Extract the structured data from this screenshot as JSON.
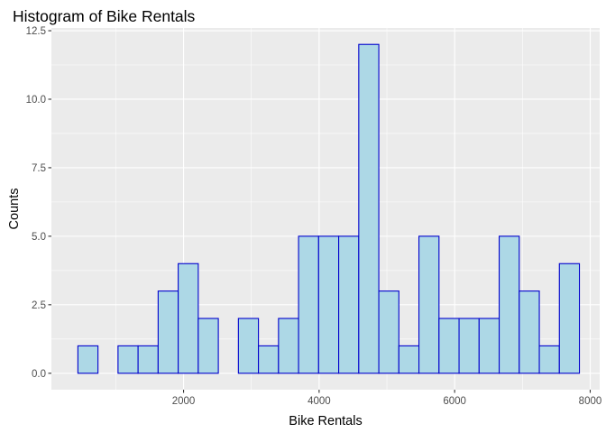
{
  "chart_data": {
    "type": "bar",
    "title": "Histogram of Bike Rentals",
    "xlabel": "Bike Rentals",
    "ylabel": "Counts",
    "xlim": [
      50,
      8140
    ],
    "ylim": [
      -0.6,
      12.6
    ],
    "x_ticks": [
      2000,
      4000,
      6000,
      8000
    ],
    "x_tick_labels": [
      "2000",
      "4000",
      "6000",
      "8000"
    ],
    "y_ticks": [
      0,
      2.5,
      5,
      7.5,
      10,
      12.5
    ],
    "y_tick_labels": [
      "0.0",
      "2.5",
      "5.0",
      "7.5",
      "10.0",
      "12.5"
    ],
    "bin_width": 296,
    "bins": [
      {
        "x0": 441,
        "x1": 737,
        "count": 1
      },
      {
        "x0": 737,
        "x1": 1033,
        "count": 0
      },
      {
        "x0": 1033,
        "x1": 1329,
        "count": 1
      },
      {
        "x0": 1329,
        "x1": 1625,
        "count": 1
      },
      {
        "x0": 1625,
        "x1": 1921,
        "count": 3
      },
      {
        "x0": 1921,
        "x1": 2217,
        "count": 4
      },
      {
        "x0": 2217,
        "x1": 2513,
        "count": 2
      },
      {
        "x0": 2513,
        "x1": 2809,
        "count": 0
      },
      {
        "x0": 2809,
        "x1": 3105,
        "count": 2
      },
      {
        "x0": 3105,
        "x1": 3401,
        "count": 1
      },
      {
        "x0": 3401,
        "x1": 3697,
        "count": 2
      },
      {
        "x0": 3697,
        "x1": 3993,
        "count": 5
      },
      {
        "x0": 3993,
        "x1": 4289,
        "count": 5
      },
      {
        "x0": 4289,
        "x1": 4585,
        "count": 5
      },
      {
        "x0": 4585,
        "x1": 4881,
        "count": 12
      },
      {
        "x0": 4881,
        "x1": 5177,
        "count": 3
      },
      {
        "x0": 5177,
        "x1": 5473,
        "count": 1
      },
      {
        "x0": 5473,
        "x1": 5769,
        "count": 5
      },
      {
        "x0": 5769,
        "x1": 6065,
        "count": 2
      },
      {
        "x0": 6065,
        "x1": 6361,
        "count": 2
      },
      {
        "x0": 6361,
        "x1": 6657,
        "count": 2
      },
      {
        "x0": 6657,
        "x1": 6953,
        "count": 5
      },
      {
        "x0": 6953,
        "x1": 7249,
        "count": 3
      },
      {
        "x0": 7249,
        "x1": 7545,
        "count": 1
      },
      {
        "x0": 7545,
        "x1": 7841,
        "count": 4
      }
    ],
    "grid": true,
    "legend": "none",
    "colors": {
      "bar_fill": "#add8e6",
      "bar_outline": "#0000cd",
      "panel_background": "#ebebeb",
      "grid": "#ffffff"
    }
  }
}
